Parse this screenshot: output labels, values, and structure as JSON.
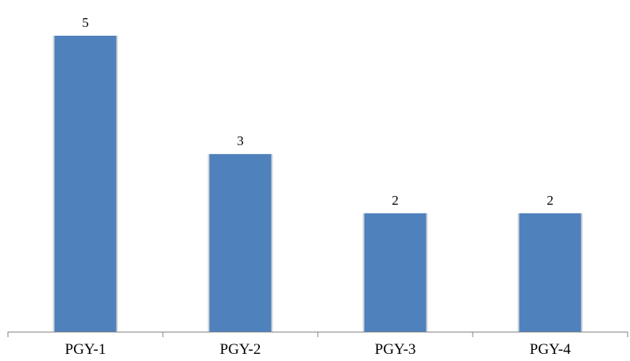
{
  "chart_data": {
    "type": "bar",
    "title": "",
    "xlabel": "",
    "ylabel": "",
    "categories": [
      "PGY-1",
      "PGY-2",
      "PGY-3",
      "PGY-4"
    ],
    "values": [
      5,
      3,
      2,
      2
    ],
    "ylim": [
      0,
      5
    ],
    "data_labels": true,
    "grid": false,
    "legend": "none",
    "y_axis_visible": false
  },
  "colors": {
    "bar": "#4f81bd",
    "axis": "#868686",
    "text": "#000000"
  }
}
